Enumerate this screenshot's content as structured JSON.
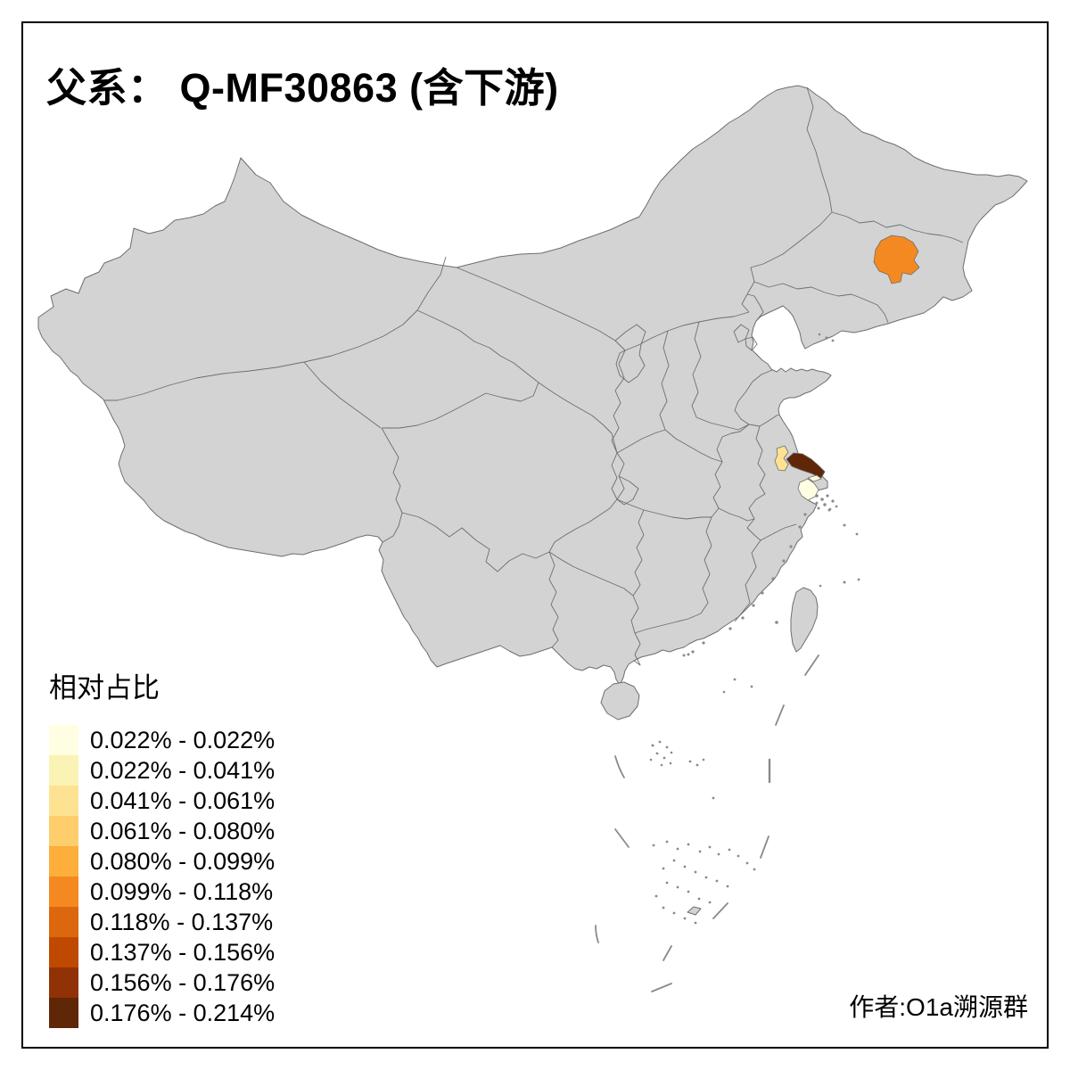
{
  "title": "父系： Q-MF30863 (含下游)",
  "attribution": "作者:O1a溯源群",
  "legend": {
    "title": "相对占比",
    "classes": [
      {
        "range": "0.022% - 0.022%",
        "color": "#FFFEE3"
      },
      {
        "range": "0.022% - 0.041%",
        "color": "#FBF2B6"
      },
      {
        "range": "0.041% - 0.061%",
        "color": "#FDE391"
      },
      {
        "range": "0.061% - 0.080%",
        "color": "#FDCE6B"
      },
      {
        "range": "0.080% - 0.099%",
        "color": "#FDAE3B"
      },
      {
        "range": "0.099% - 0.118%",
        "color": "#F48921"
      },
      {
        "range": "0.118% - 0.137%",
        "color": "#DC670D"
      },
      {
        "range": "0.137% - 0.156%",
        "color": "#C04902"
      },
      {
        "range": "0.156% - 0.176%",
        "color": "#903205"
      },
      {
        "range": "0.176% - 0.214%",
        "color": "#602608"
      }
    ]
  },
  "map": {
    "land_fill": "#D3D3D3",
    "border_color": "#6E6E6E",
    "islet_color": "#8A8A8A",
    "frame_color": "#000000",
    "background": "#FFFFFF",
    "regions": [
      {
        "name": "northeast-jilin-prefecture",
        "range": "0.099% - 0.118%",
        "color": "#F48921"
      },
      {
        "name": "yangtze-delta-northwest-prefecture",
        "range": "0.041% - 0.061%",
        "color": "#FDE391"
      },
      {
        "name": "yangtze-delta-north-bank-prefecture",
        "range": "0.176% - 0.214%",
        "color": "#602608"
      },
      {
        "name": "yangtze-delta-south-bank-prefecture",
        "range": "0.022% - 0.022%",
        "color": "#FFFEE3"
      },
      {
        "name": "yangtze-estuary-island",
        "range": "0.022% - 0.022%",
        "color": "#FFFEE3"
      }
    ]
  }
}
